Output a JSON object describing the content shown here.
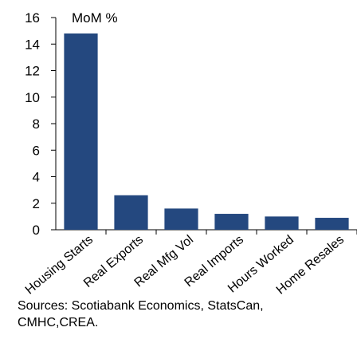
{
  "chart_data": {
    "type": "bar",
    "title": "",
    "unit_label": "MoM %",
    "xlabel": "",
    "ylabel": "",
    "categories": [
      "Housing Starts",
      "Real Exports",
      "Real Mfg Vol",
      "Real Imports",
      "Hours Worked",
      "Home Resales"
    ],
    "values": [
      14.8,
      2.6,
      1.6,
      1.2,
      1.0,
      0.9
    ],
    "ylim": [
      0,
      16
    ],
    "yticks": [
      0,
      2,
      4,
      6,
      8,
      10,
      12,
      14,
      16
    ],
    "grid": false,
    "bar_color": "#24487f"
  },
  "source": "Sources: Scotiabank Economics, StatsCan, CMHC,CREA."
}
